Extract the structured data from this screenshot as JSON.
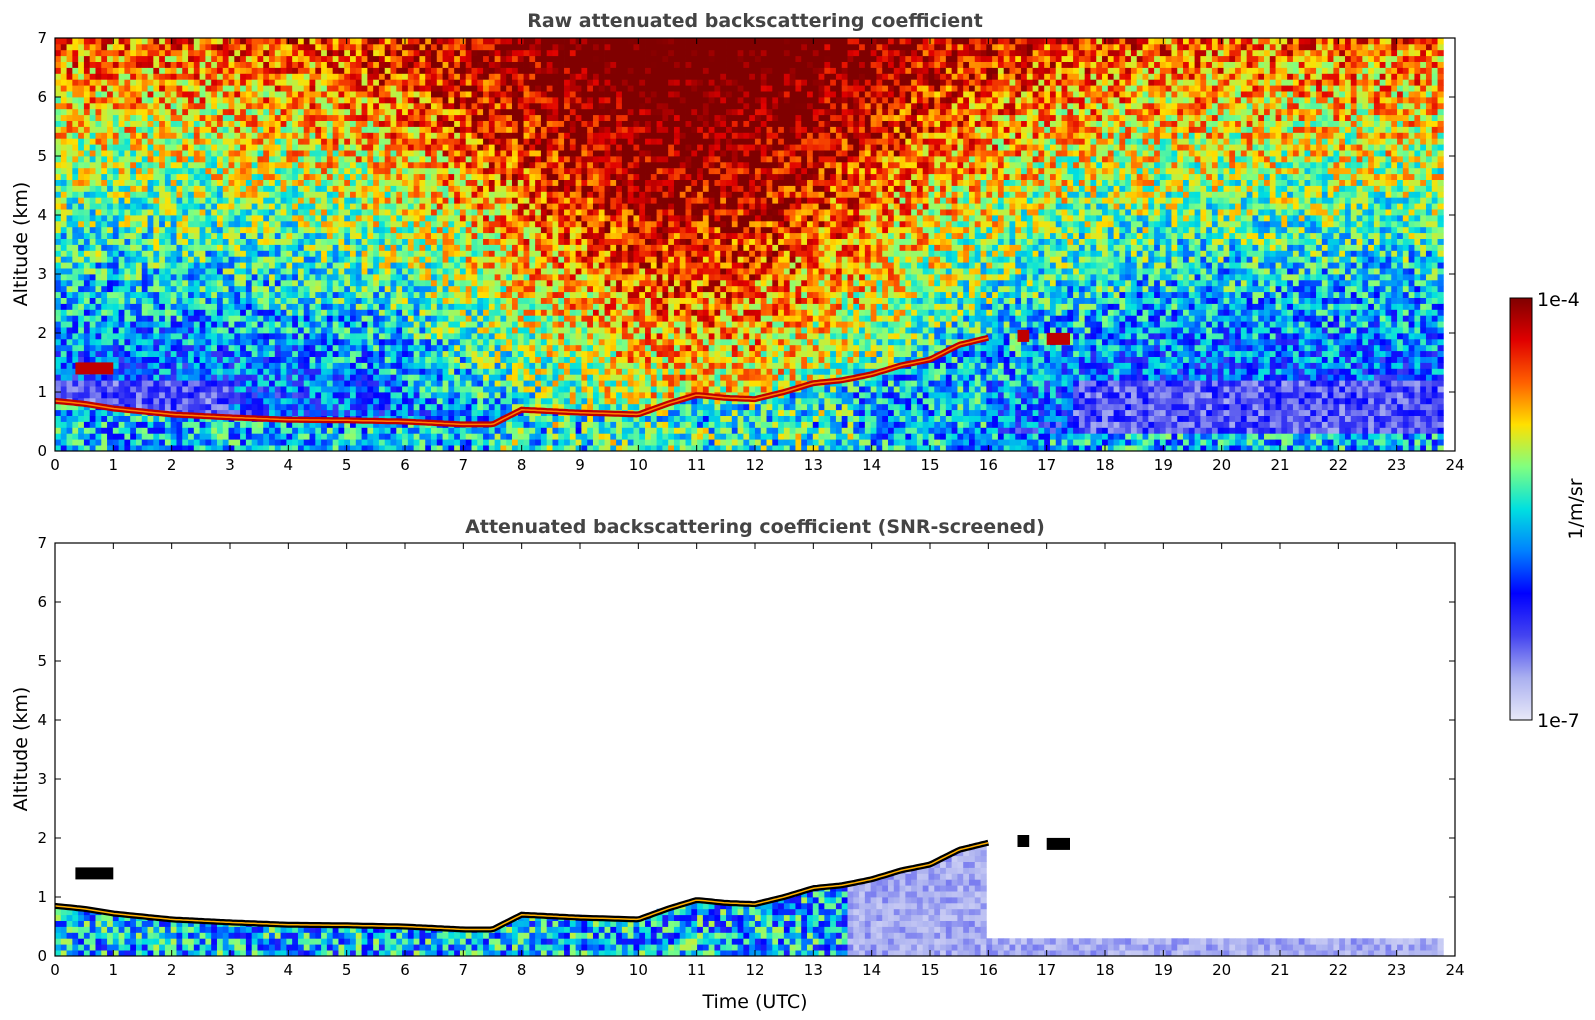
{
  "chart_data": [
    {
      "type": "heatmap",
      "title": "Raw attenuated backscattering coefficient",
      "xlabel": "",
      "ylabel": "Altitude (km)",
      "xlim": [
        0,
        24
      ],
      "ylim": [
        0,
        7
      ],
      "x_ticks": [
        "0",
        "1",
        "2",
        "3",
        "4",
        "5",
        "6",
        "7",
        "8",
        "9",
        "10",
        "11",
        "12",
        "13",
        "14",
        "15",
        "16",
        "17",
        "18",
        "19",
        "20",
        "21",
        "22",
        "23",
        "24"
      ],
      "y_ticks": [
        "0",
        "1",
        "2",
        "3",
        "4",
        "5",
        "6",
        "7"
      ],
      "data_end_hour": 23.8,
      "background": "noisy",
      "boundary_layer_top_km": [
        [
          0,
          0.85
        ],
        [
          0.5,
          0.8
        ],
        [
          1,
          0.72
        ],
        [
          2,
          0.62
        ],
        [
          3,
          0.57
        ],
        [
          4,
          0.53
        ],
        [
          5,
          0.52
        ],
        [
          6,
          0.5
        ],
        [
          7,
          0.45
        ],
        [
          7.5,
          0.45
        ],
        [
          8,
          0.7
        ],
        [
          9,
          0.65
        ],
        [
          10,
          0.62
        ],
        [
          10.5,
          0.8
        ],
        [
          11,
          0.95
        ],
        [
          11.5,
          0.9
        ],
        [
          12,
          0.88
        ],
        [
          12.5,
          1.0
        ],
        [
          13,
          1.15
        ],
        [
          13.5,
          1.2
        ],
        [
          14,
          1.3
        ],
        [
          14.5,
          1.45
        ],
        [
          15,
          1.55
        ],
        [
          15.5,
          1.8
        ],
        [
          16,
          1.92
        ]
      ],
      "elevated_layers": [
        {
          "start": 0.35,
          "end": 1.0,
          "altitude_km": 1.4
        },
        {
          "start": 16.5,
          "end": 16.7,
          "altitude_km": 1.95
        },
        {
          "start": 17.0,
          "end": 17.4,
          "altitude_km": 1.9
        }
      ]
    },
    {
      "type": "heatmap",
      "title": "Attenuated backscattering coefficient (SNR-screened)",
      "xlabel": "Time (UTC)",
      "ylabel": "Altitude (km)",
      "xlim": [
        0,
        24
      ],
      "ylim": [
        0,
        7
      ],
      "x_ticks": [
        "0",
        "1",
        "2",
        "3",
        "4",
        "5",
        "6",
        "7",
        "8",
        "9",
        "10",
        "11",
        "12",
        "13",
        "14",
        "15",
        "16",
        "17",
        "18",
        "19",
        "20",
        "21",
        "22",
        "23",
        "24"
      ],
      "y_ticks": [
        "0",
        "1",
        "2",
        "3",
        "4",
        "5",
        "6",
        "7"
      ],
      "data_end_hour": 23.8,
      "background": "screened",
      "boundary_layer_top_km": [
        [
          0,
          0.85
        ],
        [
          0.5,
          0.8
        ],
        [
          1,
          0.72
        ],
        [
          2,
          0.62
        ],
        [
          3,
          0.57
        ],
        [
          4,
          0.53
        ],
        [
          5,
          0.52
        ],
        [
          6,
          0.5
        ],
        [
          7,
          0.45
        ],
        [
          7.5,
          0.45
        ],
        [
          8,
          0.7
        ],
        [
          9,
          0.65
        ],
        [
          10,
          0.62
        ],
        [
          10.5,
          0.8
        ],
        [
          11,
          0.95
        ],
        [
          11.5,
          0.9
        ],
        [
          12,
          0.88
        ],
        [
          12.5,
          1.0
        ],
        [
          13,
          1.15
        ],
        [
          13.5,
          1.2
        ],
        [
          14,
          1.3
        ],
        [
          14.5,
          1.45
        ],
        [
          15,
          1.55
        ],
        [
          15.5,
          1.8
        ],
        [
          16,
          1.92
        ]
      ],
      "elevated_layers": [
        {
          "start": 0.35,
          "end": 1.0,
          "altitude_km": 1.4
        },
        {
          "start": 16.5,
          "end": 16.7,
          "altitude_km": 1.95
        },
        {
          "start": 17.0,
          "end": 17.4,
          "altitude_km": 1.9
        }
      ]
    }
  ],
  "colorbar": {
    "label": "1/m/sr",
    "max_label": "1e-4",
    "min_label": "1e-7",
    "scale": "log",
    "colors": [
      "#e8e8f8",
      "#aab0f0",
      "#4444f0",
      "#0000ff",
      "#0080ff",
      "#00e0e0",
      "#80ff80",
      "#ffe000",
      "#ff6000",
      "#e00000",
      "#800000"
    ]
  }
}
